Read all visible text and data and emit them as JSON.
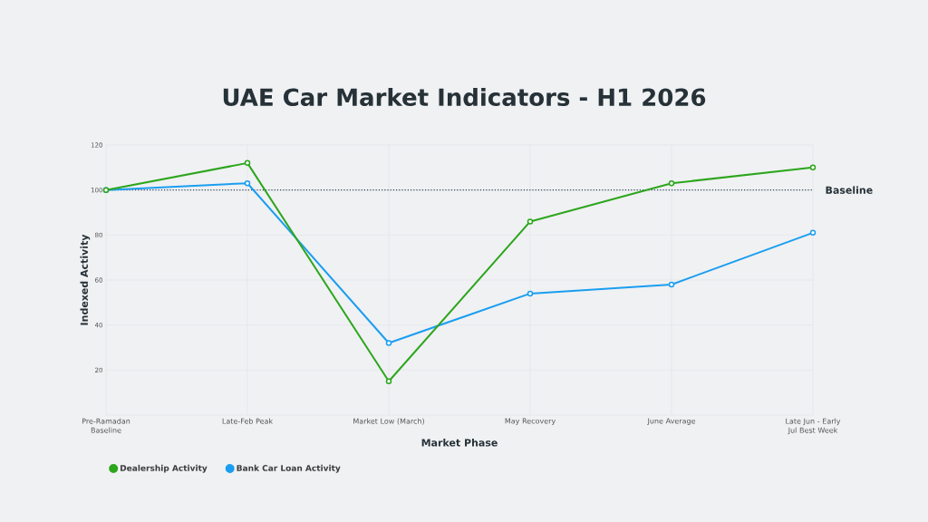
{
  "chart_data": {
    "type": "line",
    "title": "UAE Car Market Indicators - H1 2026",
    "xlabel": "Market Phase",
    "ylabel": "Indexed Activity",
    "categories": [
      "Pre-Ramadan Baseline",
      "Late-Feb Peak",
      "Market Low (March)",
      "May Recovery",
      "June Average",
      "Late Jun - Early Jul Best Week"
    ],
    "series": [
      {
        "name": "Dealership Activity",
        "color": "#2ca61c",
        "values": [
          100,
          112,
          15,
          86,
          103,
          110
        ]
      },
      {
        "name": "Bank Car Loan Activity",
        "color": "#1a9ef0",
        "values": [
          100,
          103,
          32,
          54,
          58,
          81
        ]
      }
    ],
    "ylim": [
      0,
      120
    ],
    "yticks": [
      {
        "value": 0,
        "label": null
      },
      20,
      40,
      60,
      80,
      100,
      120
    ],
    "ref_lines": [
      {
        "axis": "y",
        "value": 100,
        "label": "Baseline",
        "color": "#34495e",
        "line_style": "dotted"
      }
    ],
    "grid": true,
    "legend": "bottom",
    "marker": "circle",
    "line_style": "solid"
  }
}
